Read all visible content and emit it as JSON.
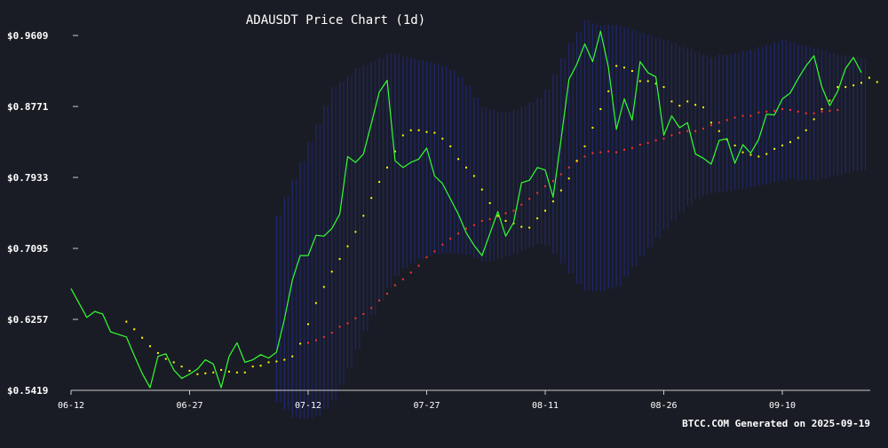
{
  "chart_data": {
    "type": "line",
    "title": "ADAUSDT Price Chart (1d)",
    "footer": "BTCC.COM Generated on 2025-09-19",
    "ylim": [
      0.5419,
      0.9609
    ],
    "y_ticks": [
      "$0.5419",
      "$0.6257",
      "$0.7095",
      "$0.7933",
      "$0.8771",
      "$0.9609"
    ],
    "x_tick_labels": [
      "06-12",
      "06-27",
      "07-12",
      "07-27",
      "08-11",
      "08-26",
      "09-10"
    ],
    "x_tick_index": [
      0,
      15,
      30,
      45,
      60,
      75,
      90
    ],
    "grid": false,
    "colors": {
      "background": "#1a1c25",
      "price": "#33ff33",
      "ma_fast": "#ffff00",
      "ma_slow": "#ff3333",
      "band": "#1f2a7a",
      "axis": "#cccccc"
    },
    "series": [
      {
        "key": "price",
        "style": "line",
        "values": [
          0.662,
          0.645,
          0.628,
          0.635,
          0.632,
          0.611,
          0.608,
          0.605,
          0.583,
          0.562,
          0.545,
          0.582,
          0.585,
          0.566,
          0.556,
          0.561,
          0.567,
          0.578,
          0.573,
          0.545,
          0.582,
          0.598,
          0.575,
          0.578,
          0.584,
          0.58,
          0.587,
          0.626,
          0.672,
          0.701,
          0.701,
          0.725,
          0.724,
          0.733,
          0.75,
          0.818,
          0.811,
          0.821,
          0.857,
          0.894,
          0.908,
          0.813,
          0.805,
          0.811,
          0.815,
          0.828,
          0.795,
          0.786,
          0.768,
          0.75,
          0.728,
          0.713,
          0.701,
          0.727,
          0.753,
          0.724,
          0.74,
          0.787,
          0.79,
          0.805,
          0.802,
          0.77,
          0.838,
          0.909,
          0.927,
          0.951,
          0.93,
          0.966,
          0.923,
          0.85,
          0.886,
          0.861,
          0.93,
          0.917,
          0.912,
          0.843,
          0.866,
          0.852,
          0.858,
          0.821,
          0.816,
          0.809,
          0.837,
          0.839,
          0.81,
          0.832,
          0.822,
          0.838,
          0.868,
          0.867,
          0.886,
          0.893,
          0.91,
          0.925,
          0.937,
          0.9,
          0.878,
          0.895,
          0.922,
          0.935,
          0.917
        ]
      },
      {
        "key": "ma_fast",
        "style": "dots",
        "start_index": 7,
        "values": [
          0.623,
          0.614,
          0.604,
          0.594,
          0.586,
          0.579,
          0.575,
          0.57,
          0.565,
          0.561,
          0.562,
          0.563,
          0.566,
          0.564,
          0.563,
          0.563,
          0.57,
          0.571,
          0.575,
          0.576,
          0.578,
          0.582,
          0.597,
          0.62,
          0.645,
          0.664,
          0.682,
          0.697,
          0.712,
          0.729,
          0.748,
          0.769,
          0.788,
          0.805,
          0.824,
          0.843,
          0.849,
          0.849,
          0.847,
          0.846,
          0.839,
          0.83,
          0.815,
          0.805,
          0.795,
          0.779,
          0.763,
          0.748,
          0.742,
          0.739,
          0.735,
          0.734,
          0.745,
          0.754,
          0.765,
          0.778,
          0.792,
          0.813,
          0.83,
          0.852,
          0.874,
          0.895,
          0.925,
          0.923,
          0.919,
          0.907,
          0.907,
          0.904,
          0.9,
          0.883,
          0.878,
          0.883,
          0.879,
          0.876,
          0.858,
          0.848,
          0.838,
          0.831,
          0.823,
          0.82,
          0.818,
          0.821,
          0.827,
          0.831,
          0.835,
          0.84,
          0.849,
          0.862,
          0.874,
          0.884,
          0.9,
          0.9,
          0.902,
          0.905,
          0.911,
          0.906
        ]
      },
      {
        "key": "ma_slow",
        "style": "dots",
        "start_index": 30,
        "values": [
          0.598,
          0.601,
          0.605,
          0.61,
          0.617,
          0.621,
          0.627,
          0.632,
          0.639,
          0.648,
          0.656,
          0.666,
          0.673,
          0.681,
          0.689,
          0.699,
          0.706,
          0.714,
          0.721,
          0.727,
          0.733,
          0.737,
          0.742,
          0.744,
          0.747,
          0.751,
          0.754,
          0.761,
          0.768,
          0.775,
          0.783,
          0.789,
          0.797,
          0.805,
          0.812,
          0.818,
          0.822,
          0.823,
          0.824,
          0.823,
          0.826,
          0.828,
          0.832,
          0.834,
          0.837,
          0.839,
          0.843,
          0.846,
          0.848,
          0.848,
          0.851,
          0.855,
          0.858,
          0.861,
          0.864,
          0.866,
          0.866,
          0.87,
          0.871,
          0.872,
          0.874,
          0.873,
          0.871,
          0.869,
          0.869,
          0.871,
          0.872,
          0.873
        ]
      }
    ],
    "band": {
      "start_index": 26,
      "upper": [
        0.748,
        0.77,
        0.791,
        0.812,
        0.835,
        0.856,
        0.878,
        0.9,
        0.906,
        0.914,
        0.922,
        0.926,
        0.93,
        0.934,
        0.94,
        0.939,
        0.936,
        0.934,
        0.932,
        0.93,
        0.928,
        0.925,
        0.92,
        0.912,
        0.902,
        0.888,
        0.876,
        0.873,
        0.87,
        0.871,
        0.873,
        0.877,
        0.882,
        0.887,
        0.897,
        0.915,
        0.934,
        0.952,
        0.965,
        0.979,
        0.975,
        0.973,
        0.973,
        0.973,
        0.97,
        0.967,
        0.964,
        0.961,
        0.958,
        0.955,
        0.952,
        0.948,
        0.945,
        0.941,
        0.938,
        0.935,
        0.938,
        0.938,
        0.94,
        0.942,
        0.944,
        0.947,
        0.95,
        0.953,
        0.956,
        0.953,
        0.95,
        0.948,
        0.946,
        0.944,
        0.941,
        0.938,
        0.937,
        0.936,
        0.934
      ],
      "lower": [
        0.528,
        0.519,
        0.51,
        0.508,
        0.509,
        0.512,
        0.52,
        0.53,
        0.548,
        0.568,
        0.59,
        0.612,
        0.631,
        0.648,
        0.663,
        0.677,
        0.686,
        0.692,
        0.697,
        0.7,
        0.703,
        0.704,
        0.704,
        0.703,
        0.702,
        0.698,
        0.694,
        0.695,
        0.697,
        0.7,
        0.703,
        0.707,
        0.711,
        0.715,
        0.713,
        0.703,
        0.692,
        0.68,
        0.668,
        0.66,
        0.659,
        0.659,
        0.662,
        0.665,
        0.676,
        0.688,
        0.7,
        0.711,
        0.722,
        0.732,
        0.742,
        0.752,
        0.76,
        0.768,
        0.772,
        0.775,
        0.776,
        0.777,
        0.779,
        0.78,
        0.782,
        0.784,
        0.786,
        0.788,
        0.79,
        0.792,
        0.79,
        0.79,
        0.79,
        0.792,
        0.794,
        0.796,
        0.798,
        0.8,
        0.802
      ]
    }
  }
}
